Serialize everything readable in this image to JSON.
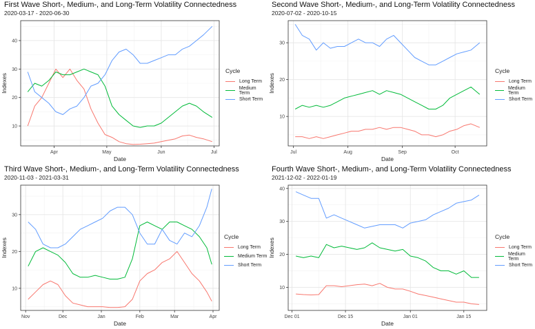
{
  "legend": {
    "title": "Cycle",
    "items": [
      {
        "label": "Long Term",
        "color": "#F8766D"
      },
      {
        "label": "Medium Term",
        "color": "#00BA38"
      },
      {
        "label": "Short Term",
        "color": "#619CFF"
      }
    ]
  },
  "chart_data": [
    {
      "type": "line",
      "title": "First Wave Short-, Medium-, and Long-Term Volatility Connectedness",
      "subtitle": "2020-03-17 - 2020-06-30",
      "xlabel": "Date",
      "ylabel": "Indexes",
      "xlim": [
        "2020-03-13",
        "2020-07-04"
      ],
      "ylim": [
        3,
        47
      ],
      "yticks": [
        10,
        20,
        30,
        40
      ],
      "xticks": [
        {
          "date": "2020-04-01",
          "label": "Apr"
        },
        {
          "date": "2020-05-01",
          "label": "May"
        },
        {
          "date": "2020-06-01",
          "label": "Jun"
        },
        {
          "date": "2020-07-01",
          "label": "Jul"
        }
      ],
      "grid": true,
      "legend_position": "right",
      "x": [
        "2020-03-17",
        "2020-03-21",
        "2020-03-25",
        "2020-03-29",
        "2020-04-02",
        "2020-04-06",
        "2020-04-10",
        "2020-04-14",
        "2020-04-18",
        "2020-04-22",
        "2020-04-26",
        "2020-04-30",
        "2020-05-04",
        "2020-05-08",
        "2020-05-12",
        "2020-05-16",
        "2020-05-20",
        "2020-05-24",
        "2020-05-28",
        "2020-06-01",
        "2020-06-05",
        "2020-06-09",
        "2020-06-13",
        "2020-06-17",
        "2020-06-21",
        "2020-06-25",
        "2020-06-30"
      ],
      "series": [
        {
          "name": "Long Term",
          "values": [
            10,
            17,
            20,
            25,
            30,
            27,
            30,
            26,
            23,
            16,
            11,
            7,
            6,
            4.5,
            3.8,
            3.5,
            3.6,
            3.8,
            4,
            4.5,
            5,
            5.5,
            6.5,
            6.8,
            6,
            5.5,
            4.5
          ]
        },
        {
          "name": "Medium Term",
          "values": [
            22,
            25,
            24,
            26,
            29,
            28,
            28,
            29,
            30,
            29,
            28,
            24,
            17,
            14,
            12,
            10,
            9.5,
            10,
            10,
            11,
            13,
            15,
            17,
            18,
            17,
            15,
            13
          ]
        },
        {
          "name": "Short Term",
          "values": [
            29,
            22,
            20,
            18,
            15,
            14,
            16,
            17,
            20,
            24,
            25,
            28,
            33,
            36,
            37,
            35,
            32,
            32,
            33,
            34,
            35,
            35,
            37,
            38,
            40,
            42,
            45
          ]
        }
      ]
    },
    {
      "type": "line",
      "title": "Second Wave Short-, Medium-, and Long-Term Volatility Connectedness",
      "subtitle": "2020-07-02 - 2020-10-15",
      "xlabel": "Date",
      "ylabel": "Indexes",
      "xlim": [
        "2020-06-28",
        "2020-10-19"
      ],
      "ylim": [
        2,
        36
      ],
      "yticks": [
        10,
        20,
        30
      ],
      "xticks": [
        {
          "date": "2020-07-01",
          "label": "Jul"
        },
        {
          "date": "2020-08-01",
          "label": "Aug"
        },
        {
          "date": "2020-09-01",
          "label": "Sep"
        },
        {
          "date": "2020-10-01",
          "label": "Oct"
        }
      ],
      "grid": true,
      "legend_position": "right",
      "x": [
        "2020-07-02",
        "2020-07-06",
        "2020-07-10",
        "2020-07-14",
        "2020-07-18",
        "2020-07-22",
        "2020-07-26",
        "2020-07-30",
        "2020-08-03",
        "2020-08-07",
        "2020-08-11",
        "2020-08-15",
        "2020-08-19",
        "2020-08-23",
        "2020-08-27",
        "2020-08-31",
        "2020-09-04",
        "2020-09-08",
        "2020-09-12",
        "2020-09-16",
        "2020-09-20",
        "2020-09-24",
        "2020-09-28",
        "2020-10-02",
        "2020-10-06",
        "2020-10-10",
        "2020-10-15"
      ],
      "series": [
        {
          "name": "Long Term",
          "values": [
            4.5,
            4.5,
            4,
            4.5,
            4,
            4.5,
            5,
            5.5,
            6,
            6,
            6.5,
            6.5,
            7,
            6.5,
            7,
            7,
            6.5,
            6,
            5,
            5,
            4.5,
            5,
            6,
            6.5,
            7.5,
            8,
            7
          ]
        },
        {
          "name": "Medium Term",
          "values": [
            12,
            13,
            12.5,
            13,
            12.5,
            13,
            14,
            15,
            15.5,
            16,
            16.5,
            17,
            16,
            17,
            16.5,
            16,
            15,
            14,
            13,
            12,
            12,
            13,
            15,
            16,
            17,
            18,
            16
          ]
        },
        {
          "name": "Short Term",
          "values": [
            35,
            32,
            31,
            28,
            30,
            28.5,
            29,
            29,
            30,
            31,
            30,
            30,
            29,
            31,
            32,
            30,
            28,
            26,
            25,
            24,
            24,
            25,
            26,
            27,
            27.5,
            28,
            30
          ]
        }
      ]
    },
    {
      "type": "line",
      "title": "Third Wave Short-, Medium-, and Long-Term Volatility Connectedness",
      "subtitle": "2020-11-03 - 2021-03-31",
      "xlabel": "Date",
      "ylabel": "Indexes",
      "xlim": [
        "2020-10-28",
        "2021-04-06"
      ],
      "ylim": [
        4,
        38
      ],
      "yticks": [
        10,
        20,
        30
      ],
      "xticks": [
        {
          "date": "2020-11-01",
          "label": "Nov"
        },
        {
          "date": "2020-12-01",
          "label": "Dec"
        },
        {
          "date": "2021-01-01",
          "label": "Jan"
        },
        {
          "date": "2021-02-01",
          "label": "Feb"
        },
        {
          "date": "2021-03-01",
          "label": "Mar"
        },
        {
          "date": "2021-04-01",
          "label": "Apr"
        }
      ],
      "grid": true,
      "legend_position": "right",
      "x": [
        "2020-11-03",
        "2020-11-09",
        "2020-11-15",
        "2020-11-21",
        "2020-11-27",
        "2020-12-03",
        "2020-12-09",
        "2020-12-15",
        "2020-12-21",
        "2020-12-27",
        "2021-01-02",
        "2021-01-08",
        "2021-01-14",
        "2021-01-20",
        "2021-01-26",
        "2021-02-01",
        "2021-02-07",
        "2021-02-13",
        "2021-02-19",
        "2021-02-25",
        "2021-03-03",
        "2021-03-09",
        "2021-03-15",
        "2021-03-21",
        "2021-03-27",
        "2021-03-31"
      ],
      "series": [
        {
          "name": "Long Term",
          "values": [
            7,
            9,
            11,
            12,
            11,
            8,
            6,
            5.5,
            5,
            5,
            5,
            4.8,
            4.8,
            5,
            7,
            12,
            14,
            15,
            17,
            18,
            20,
            17,
            14,
            12,
            9,
            6.5
          ]
        },
        {
          "name": "Medium Term",
          "values": [
            16,
            20,
            21,
            20,
            19,
            17,
            14,
            13,
            13,
            13.5,
            13,
            12.5,
            12.5,
            13,
            18,
            27,
            28,
            27,
            26,
            28,
            28,
            27,
            26,
            24,
            21,
            16.5
          ]
        },
        {
          "name": "Short Term",
          "values": [
            28,
            26,
            22,
            21,
            21,
            22,
            24,
            26,
            27,
            28,
            29,
            31,
            32,
            32,
            30,
            25,
            22,
            22,
            26,
            23,
            22,
            25,
            24,
            27,
            32,
            37
          ]
        }
      ]
    },
    {
      "type": "line",
      "title": "Fourth Wave Short-, Medium-, and Long-Term Volatility Connectedness",
      "subtitle": "2021-12-02 - 2022-01-19",
      "xlabel": "Date",
      "ylabel": "Indexes",
      "xlim": [
        "2021-11-30",
        "2022-01-21"
      ],
      "ylim": [
        3,
        41
      ],
      "yticks": [
        10,
        20,
        30,
        40
      ],
      "xticks": [
        {
          "date": "2021-12-01",
          "label": "Dec 01"
        },
        {
          "date": "2021-12-15",
          "label": "Dec 15"
        },
        {
          "date": "2022-01-01",
          "label": "Jan 01"
        },
        {
          "date": "2022-01-15",
          "label": "Jan 15"
        }
      ],
      "grid": true,
      "legend_position": "right",
      "x": [
        "2021-12-02",
        "2021-12-04",
        "2021-12-06",
        "2021-12-08",
        "2021-12-10",
        "2021-12-12",
        "2021-12-14",
        "2021-12-16",
        "2021-12-18",
        "2021-12-20",
        "2021-12-22",
        "2021-12-24",
        "2021-12-26",
        "2021-12-28",
        "2021-12-30",
        "2022-01-01",
        "2022-01-03",
        "2022-01-05",
        "2022-01-07",
        "2022-01-09",
        "2022-01-11",
        "2022-01-13",
        "2022-01-15",
        "2022-01-17",
        "2022-01-19"
      ],
      "series": [
        {
          "name": "Long Term",
          "values": [
            8,
            7.8,
            7.7,
            7.8,
            10.5,
            10.5,
            10.2,
            10.5,
            10.8,
            11,
            10.5,
            11.2,
            10,
            9.5,
            9.5,
            8.8,
            8,
            7.5,
            7,
            6.5,
            6,
            5.5,
            5.5,
            5,
            4.8
          ]
        },
        {
          "name": "Medium Term",
          "values": [
            19.5,
            19,
            19.5,
            19,
            23,
            22,
            22.5,
            22,
            21.5,
            22,
            23.5,
            22,
            21.5,
            21,
            21.5,
            19.5,
            19,
            18,
            16,
            15,
            15,
            14,
            15,
            13,
            13
          ]
        },
        {
          "name": "Short Term",
          "values": [
            39,
            38,
            37,
            37,
            31,
            32,
            31,
            30,
            29,
            28,
            28.5,
            29,
            29,
            29,
            28,
            29.5,
            30,
            30.5,
            32,
            33,
            34,
            35.5,
            36,
            36.5,
            38
          ]
        }
      ]
    }
  ]
}
